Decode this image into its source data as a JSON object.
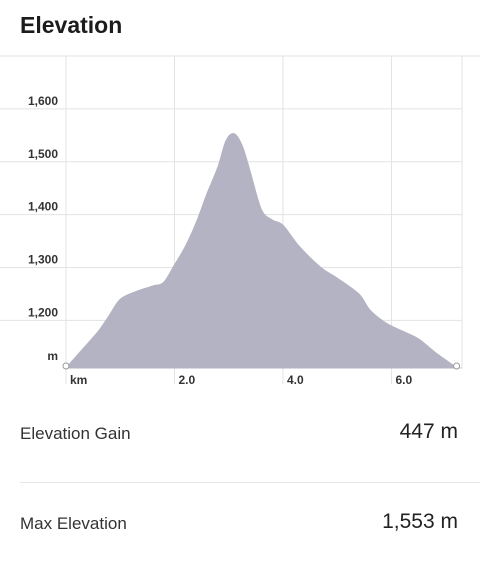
{
  "header": {
    "title": "Elevation"
  },
  "chart_data": {
    "type": "area",
    "xlabel": "km",
    "ylabel": "m",
    "xlim": [
      0,
      7.3
    ],
    "ylim": [
      1110,
      1700
    ],
    "x_ticks": [
      {
        "value": 2.0,
        "label": "2.0"
      },
      {
        "value": 4.0,
        "label": "4.0"
      },
      {
        "value": 6.0,
        "label": "6.0"
      }
    ],
    "y_ticks": [
      {
        "value": 1200,
        "label": "1,200"
      },
      {
        "value": 1300,
        "label": "1,300"
      },
      {
        "value": 1400,
        "label": "1,400"
      },
      {
        "value": 1500,
        "label": "1,500"
      },
      {
        "value": 1600,
        "label": "1,600"
      }
    ],
    "grid": true,
    "fill_color": "#b4b3c4",
    "x": [
      0,
      0.3,
      0.6,
      0.8,
      1.0,
      1.3,
      1.6,
      1.8,
      2.0,
      2.2,
      2.4,
      2.6,
      2.8,
      2.95,
      3.1,
      3.25,
      3.4,
      3.6,
      3.8,
      4.0,
      4.3,
      4.7,
      5.0,
      5.4,
      5.6,
      5.9,
      6.2,
      6.5,
      6.8,
      7.1,
      7.2
    ],
    "values": [
      1110,
      1145,
      1180,
      1210,
      1240,
      1255,
      1265,
      1272,
      1305,
      1340,
      1385,
      1440,
      1490,
      1540,
      1553,
      1530,
      1480,
      1410,
      1390,
      1380,
      1340,
      1300,
      1280,
      1250,
      1220,
      1195,
      1180,
      1165,
      1140,
      1118,
      1110
    ]
  },
  "stats": {
    "gain": {
      "label": "Elevation Gain",
      "value": "447 m"
    },
    "max": {
      "label": "Max Elevation",
      "value": "1,553 m"
    }
  }
}
